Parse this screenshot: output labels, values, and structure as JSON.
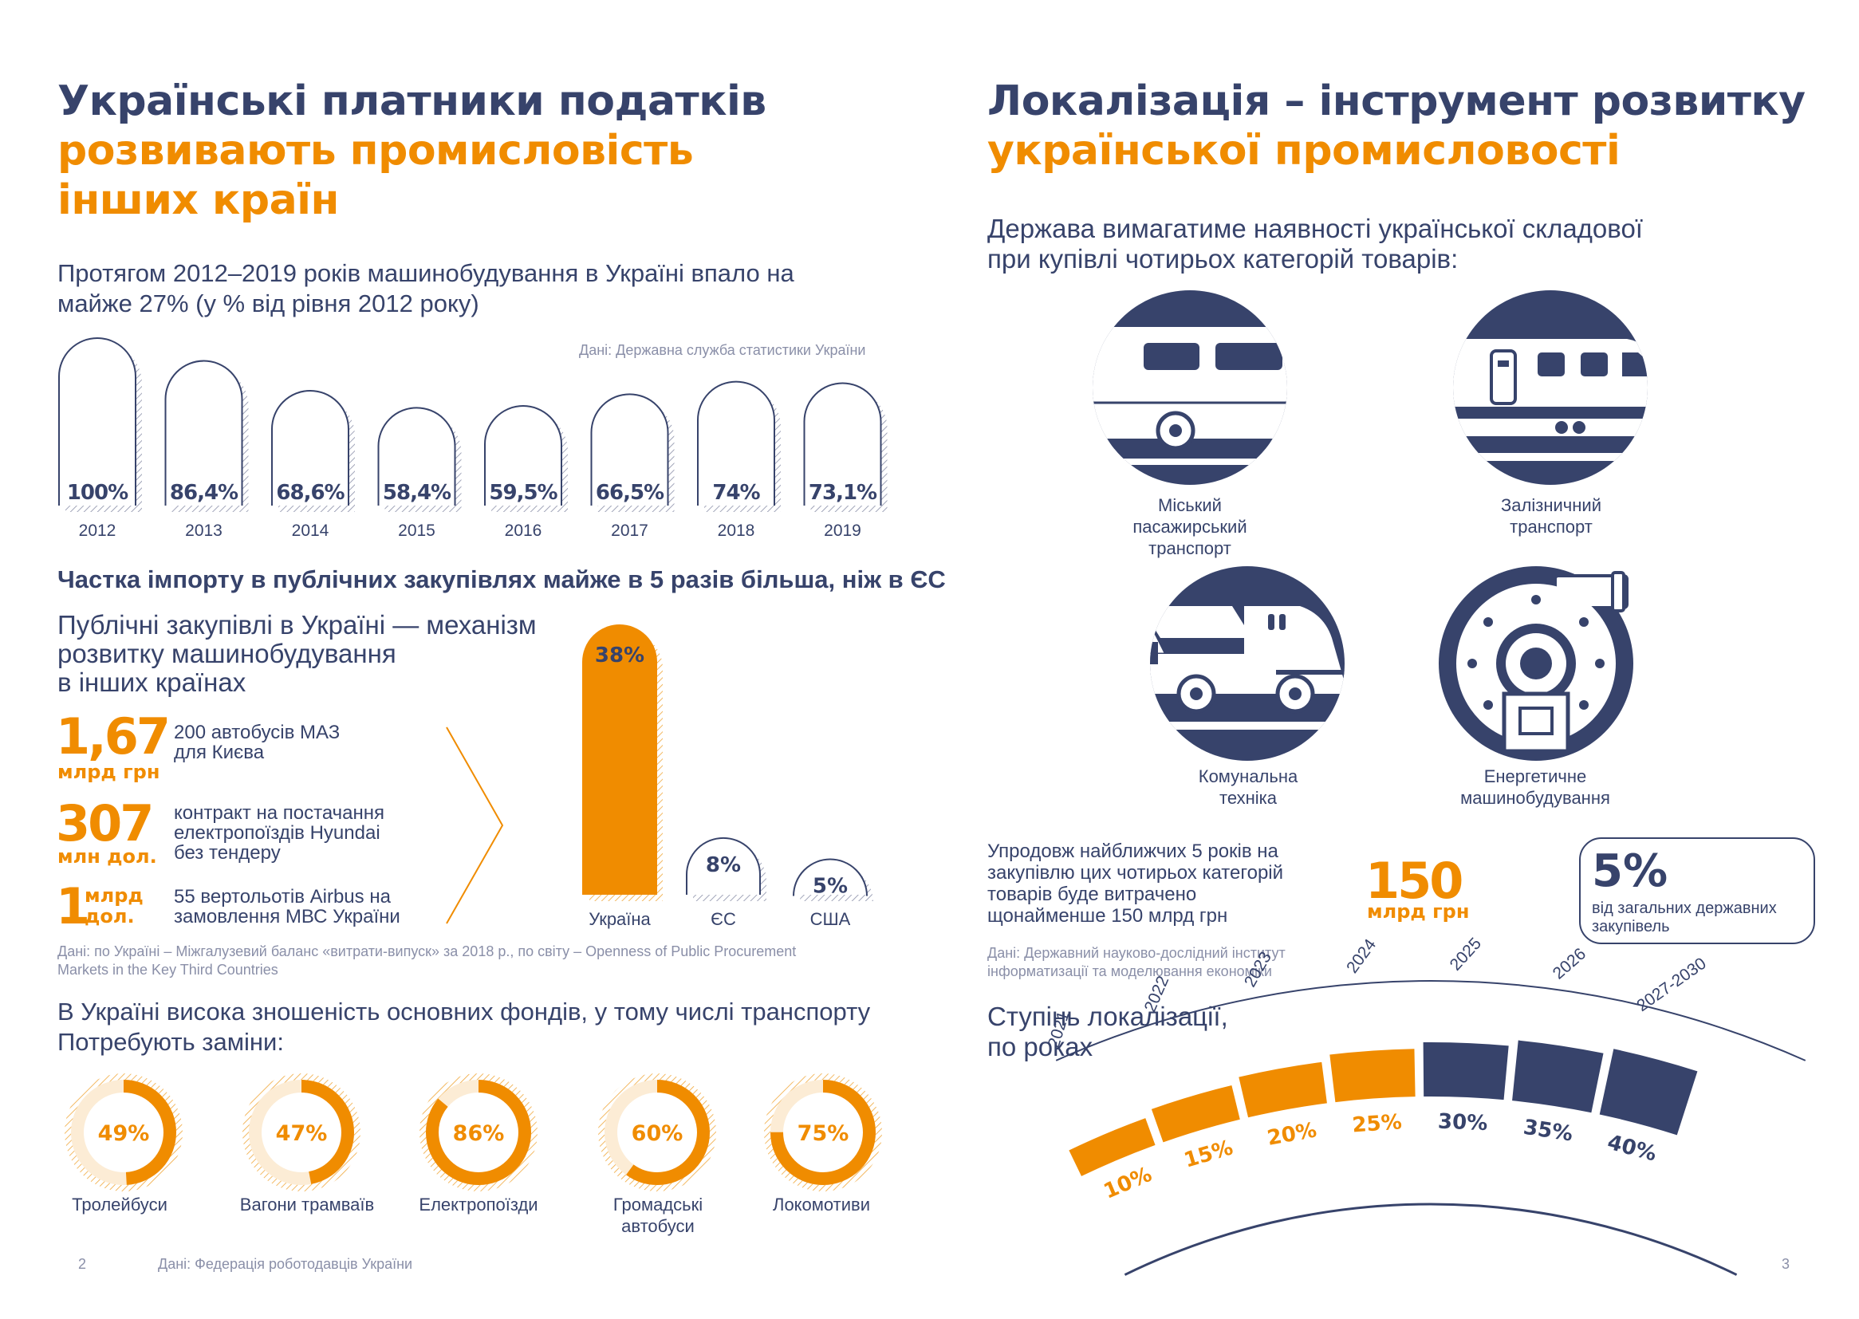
{
  "left": {
    "title_line1": "Українські платники податків",
    "title_line2": "розвивають промисловість",
    "title_line3": "інших країн",
    "sub1_line1": "Протягом 2012–2019 років машинобудування в Україні впало на",
    "sub1_line2": "майже 27% (у % від рівня 2012 року)",
    "source1": "Дані: Державна служба статистики України",
    "sub2": "Частка імпорту в публічних закупівлях майже в 5 разів більша, ніж в ЄС",
    "sub2b_line1": "Публічні закупівлі в Україні — механізм",
    "sub2b_line2": "розвитку машинобудування",
    "sub2b_line3": "в інших країнах",
    "facts": [
      {
        "num": "1,67",
        "unit": "млрд грн",
        "d1": "200 автобусів МАЗ",
        "d2": "для Києва",
        "d3": ""
      },
      {
        "num": "307",
        "unit": "млн дол.",
        "d1": "контракт на постачання",
        "d2": "електропоїздів Hyundai",
        "d3": "без тендеру"
      },
      {
        "num": "1",
        "unit1": "млрд",
        "unit2": "дол.",
        "d1": "55 вертольотів Airbus на",
        "d2": "замовлення МВС України"
      }
    ],
    "source2_line1": "Дані: по Україні – Міжгалузевий баланс «витрати-випуск» за 2018 р., по світу – Openness of Public Procurement",
    "source2_line2": "Markets in the Key Third Countries",
    "sub3_line1": "В Україні висока зношеність основних фондів, у тому числі транспорту",
    "sub3_line2": "Потребують заміни:",
    "page_num": "2",
    "footer_source": "Дані: Федерація роботодавців України"
  },
  "right": {
    "title_line1": "Локалізація – інструмент розвитку",
    "title_line2": "української промисловості",
    "intro_line1": "Держава вимагатиме наявності української складової",
    "intro_line2": "при купівлі чотирьох категорій товарів:",
    "categories": [
      {
        "icon": "tram-icon",
        "l1": "Міський",
        "l2": "пасажирський транспорт"
      },
      {
        "icon": "train-icon",
        "l1": "Залізничний",
        "l2": "транспорт"
      },
      {
        "icon": "truck-icon",
        "l1": "Комунальна",
        "l2": "техніка"
      },
      {
        "icon": "turbine-icon",
        "l1": "Енергетичне",
        "l2": "машинобудування"
      }
    ],
    "spend_line1": "Упродовж найближчих 5 років на",
    "spend_line2": "закупівлю цих чотирьох категорій",
    "spend_line3": "товарів буде витрачено",
    "spend_line4": "щонайменше 150 млрд грн",
    "spend_num": "150",
    "spend_unit": "млрд грн",
    "box_pct": "5%",
    "box_line1": "від загальних державних",
    "box_line2": "закупівель",
    "source3_line1": "Дані: Державний науково-дослідний інститут",
    "source3_line2": "інформатизації та моделювання економіки",
    "arc_title_line1": "Ступінь локалізації,",
    "arc_title_line2": "по роках",
    "page_num": "3"
  },
  "chart_data": [
    {
      "type": "bar",
      "title": "Протягом 2012–2019 років машинобудування в Україні впало на майже 27% (у % від рівня 2012 року)",
      "categories": [
        "2012",
        "2013",
        "2014",
        "2015",
        "2016",
        "2017",
        "2018",
        "2019"
      ],
      "values": [
        100,
        86.4,
        68.6,
        58.4,
        59.5,
        66.5,
        74,
        73.1
      ],
      "labels": [
        "100%",
        "86,4%",
        "68,6%",
        "58,4%",
        "59,5%",
        "66,5%",
        "74%",
        "73,1%"
      ],
      "ylim": [
        0,
        100
      ]
    },
    {
      "type": "bar",
      "title": "Частка імпорту в публічних закупівлях",
      "categories": [
        "Україна",
        "ЄС",
        "США"
      ],
      "values": [
        38,
        8,
        5
      ],
      "labels": [
        "38%",
        "8%",
        "5%"
      ],
      "ylim": [
        0,
        38
      ]
    },
    {
      "type": "pie",
      "title": "Потребують заміни",
      "categories": [
        "Тролейбуси",
        "Вагони трамваїв",
        "Електропоїзди",
        "Громадські автобуси",
        "Локомотиви"
      ],
      "values": [
        49,
        47,
        86,
        60,
        75
      ],
      "labels": [
        "49%",
        "47%",
        "86%",
        "60%",
        "75%"
      ]
    },
    {
      "type": "bar",
      "title": "Ступінь локалізації, по роках",
      "categories": [
        "2021",
        "2022",
        "2023",
        "2024",
        "2025",
        "2026",
        "2027-2030"
      ],
      "values": [
        10,
        15,
        20,
        25,
        30,
        35,
        40
      ],
      "labels": [
        "10%",
        "15%",
        "20%",
        "25%",
        "30%",
        "35%",
        "40%"
      ]
    }
  ],
  "colors": {
    "navy": "#37436b",
    "orange": "#f08c00",
    "grey": "#8a8fa8"
  }
}
